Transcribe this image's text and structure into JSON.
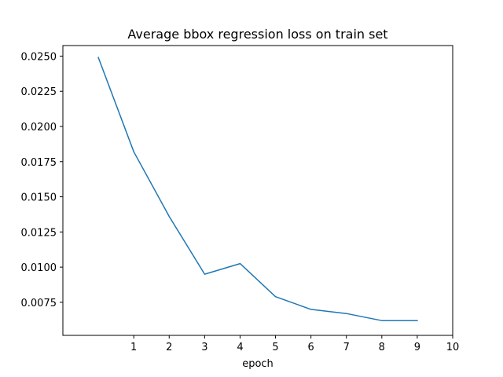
{
  "chart_data": {
    "type": "line",
    "title": "Average bbox regression loss on train set",
    "xlabel": "epoch",
    "ylabel": "",
    "xlim": [
      -1.0,
      10.0
    ],
    "ylim": [
      0.00515,
      0.02575
    ],
    "x_ticks": [
      1,
      2,
      3,
      4,
      5,
      6,
      7,
      8,
      9,
      10
    ],
    "x_tick_labels": [
      "1",
      "2",
      "3",
      "4",
      "5",
      "6",
      "7",
      "8",
      "9",
      "10"
    ],
    "y_ticks": [
      0.0075,
      0.01,
      0.0125,
      0.015,
      0.0175,
      0.02,
      0.0225,
      0.025
    ],
    "y_tick_labels": [
      "0.0075",
      "0.0100",
      "0.0125",
      "0.0150",
      "0.0175",
      "0.0200",
      "0.0225",
      "0.0250"
    ],
    "grid": false,
    "series": [
      {
        "color": "#1f77b4",
        "x": [
          0,
          1,
          2,
          3,
          4,
          5,
          6,
          7,
          8,
          9
        ],
        "y": [
          0.0249,
          0.0182,
          0.0136,
          0.0095,
          0.01025,
          0.0079,
          0.007,
          0.0067,
          0.0062,
          0.0062
        ]
      }
    ]
  }
}
